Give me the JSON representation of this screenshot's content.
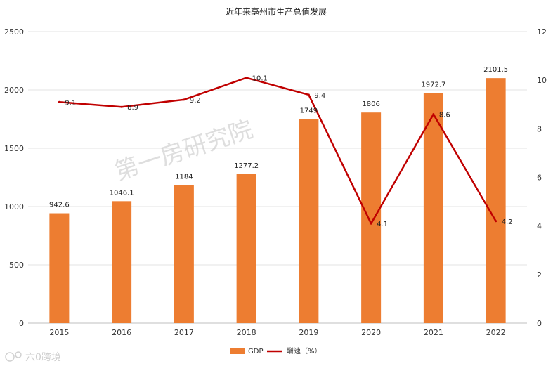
{
  "chart_data": {
    "type": "bar",
    "title": "近年来亳州市生产总值发展",
    "categories": [
      "2015",
      "2016",
      "2017",
      "2018",
      "2019",
      "2020",
      "2021",
      "2022"
    ],
    "series": [
      {
        "name": "GDP",
        "type": "bar",
        "axis": "left",
        "color": "#ED7D31",
        "values": [
          942.6,
          1046.1,
          1184,
          1277.2,
          1749,
          1806,
          1972.7,
          2101.5
        ],
        "labels": [
          "942.6",
          "1046.1",
          "1184",
          "1277.2",
          "1749",
          "1806",
          "1972.7",
          "2101.5"
        ]
      },
      {
        "name": "增速（%）",
        "type": "line",
        "axis": "right",
        "color": "#C00000",
        "values": [
          9.1,
          8.9,
          9.2,
          10.1,
          9.4,
          4.1,
          8.6,
          4.2
        ],
        "labels": [
          "9.1",
          "8.9",
          "9.2",
          "10.1",
          "9.4",
          "4.1",
          "8.6",
          "4.2"
        ]
      }
    ],
    "y_left": {
      "min": 0,
      "max": 2500,
      "ticks": [
        "0",
        "500",
        "1000",
        "1500",
        "2000",
        "2500"
      ]
    },
    "y_right": {
      "min": 0,
      "max": 12,
      "ticks": [
        "0",
        "2",
        "4",
        "6",
        "8",
        "10",
        "12"
      ]
    },
    "grid": true,
    "legend_position": "bottom"
  },
  "watermark": {
    "text": "第一房研究院",
    "logo_text": "六0跨境"
  }
}
